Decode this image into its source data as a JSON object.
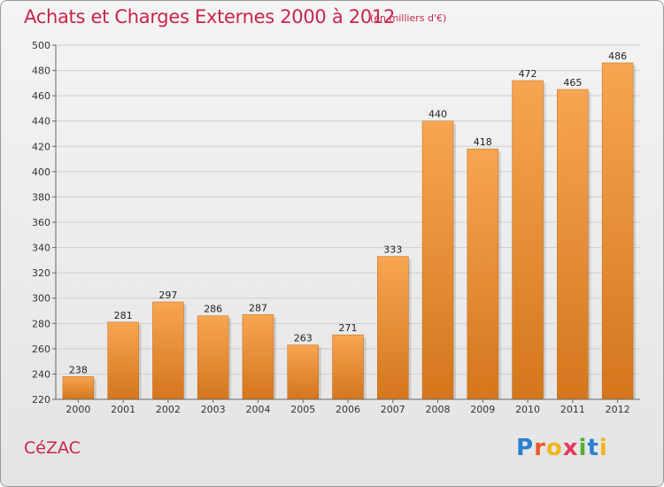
{
  "header": {
    "title": "Achats et Charges Externes 2000 à 2012",
    "subtitle": "(en milliers d'€)"
  },
  "footer": {
    "commune": "CéZAC",
    "logo": [
      "P",
      "r",
      "o",
      "x",
      "i",
      "t",
      "i"
    ]
  },
  "colors": {
    "bar_top": "#f7a552",
    "bar_bottom": "#d4761c",
    "title": "#c9244a"
  },
  "chart_data": {
    "type": "bar",
    "title": "Achats et Charges Externes 2000 à 2012",
    "subtitle": "(en milliers d'€)",
    "categories": [
      "2000",
      "2001",
      "2002",
      "2003",
      "2004",
      "2005",
      "2006",
      "2007",
      "2008",
      "2009",
      "2010",
      "2011",
      "2012"
    ],
    "values": [
      238,
      281,
      297,
      286,
      287,
      263,
      271,
      333,
      440,
      418,
      472,
      465,
      486
    ],
    "ylim": [
      220,
      500
    ],
    "yticks": [
      220,
      240,
      260,
      280,
      300,
      320,
      340,
      360,
      380,
      400,
      420,
      440,
      460,
      480,
      500
    ],
    "grid": true,
    "data_labels": true
  }
}
